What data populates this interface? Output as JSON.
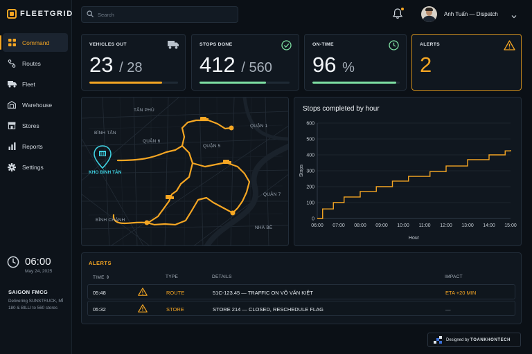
{
  "app": {
    "name": "FLEETGRID"
  },
  "nav": [
    {
      "label": "Command",
      "icon": "grid-icon",
      "active": true
    },
    {
      "label": "Routes",
      "icon": "route-icon"
    },
    {
      "label": "Fleet",
      "icon": "truck-icon"
    },
    {
      "label": "Warehouse",
      "icon": "warehouse-icon"
    },
    {
      "label": "Stores",
      "icon": "store-icon"
    },
    {
      "label": "Reports",
      "icon": "bar-chart-icon"
    },
    {
      "label": "Settings",
      "icon": "gear-icon"
    }
  ],
  "clock": {
    "time": "06:00",
    "date": "May 24, 2025"
  },
  "company": {
    "name": "SAIGON FMCG",
    "description": "Delivering SUNSTRUCK, MÌ 180 & BILLI to 560 stores"
  },
  "search": {
    "placeholder": "Search"
  },
  "user": {
    "name": "Anh Tuấn — Dispatch",
    "has_notification": true
  },
  "kpis": [
    {
      "label": "VEHICLES OUT",
      "value": "23",
      "sub": "/ 28",
      "icon": "truck-icon",
      "progress": 0.82,
      "color": "#f5a623"
    },
    {
      "label": "STOPS DONE",
      "value": "412",
      "sub": "/ 560",
      "icon": "check-circle-icon",
      "progress": 0.74,
      "color": "#7fe0a3"
    },
    {
      "label": "ON-TIME",
      "value": "96",
      "sub": "%",
      "icon": "clock-icon",
      "progress": 0.96,
      "color": "#7fe0a3"
    },
    {
      "label": "ALERTS",
      "value": "2",
      "sub": "",
      "icon": "warning-icon"
    }
  ],
  "map": {
    "districts": [
      "TÂN PHÚ",
      "BÌNH TÂN",
      "QUẬN 6",
      "QUẬN 5",
      "QUẬN 1",
      "QUẬN 7",
      "BÌNH CHÁNH",
      "NHÀ BÈ"
    ],
    "depot_label": "KHO BÌNH TÂN"
  },
  "chart_data": {
    "type": "line",
    "title": "Stops completed by hour",
    "xlabel": "Hour",
    "ylabel": "Stops",
    "categories": [
      "06:00",
      "07:00",
      "08:00",
      "09:00",
      "10:00",
      "11:00",
      "12:00",
      "13:00",
      "14:00",
      "15:00"
    ],
    "step_x": [
      "06:00",
      "06:15",
      "06:45",
      "07:15",
      "08:00",
      "08:45",
      "09:30",
      "10:15",
      "11:15",
      "12:00",
      "13:00",
      "14:00",
      "14:45",
      "15:15"
    ],
    "step_y": [
      0,
      60,
      100,
      135,
      170,
      200,
      235,
      265,
      295,
      330,
      370,
      400,
      425,
      430
    ],
    "ylim": [
      0,
      600
    ],
    "yticks": [
      0,
      100,
      200,
      300,
      400,
      500,
      600
    ],
    "grid": true,
    "color": "#f5a623"
  },
  "alerts": {
    "title": "ALERTS",
    "headers": {
      "time": "TIME",
      "type": "TYPE",
      "details": "DETAILS",
      "impact": "IMPACT"
    },
    "rows": [
      {
        "time": "05:48",
        "type": "ROUTE",
        "details": "51C-123.45 — TRAFFIC ON VÕ VĂN KIỆT",
        "impact": "ETA +20 MIN"
      },
      {
        "time": "05:32",
        "type": "STORE",
        "details": "STORE 214 — CLOSED, RESCHEDULE FLAG",
        "impact": "—"
      }
    ]
  },
  "credit": {
    "prefix": "Designed by",
    "name": "TOANKHONTECH"
  }
}
